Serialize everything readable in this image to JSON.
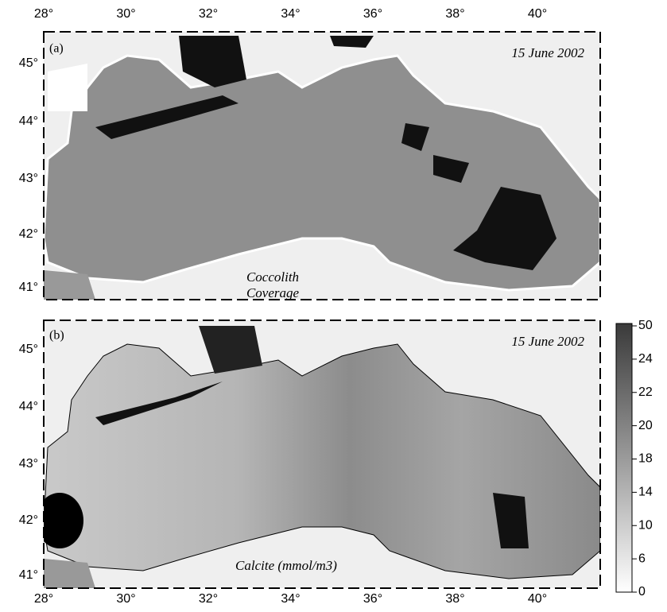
{
  "panels": [
    {
      "label": "(a)",
      "date": "15 June 2002",
      "annotation": [
        "Coccolith",
        "Coverage"
      ]
    },
    {
      "label": "(b)",
      "date": "15 June 2002",
      "annotation": [
        "Calcite (mmol/m3)"
      ]
    }
  ],
  "longitude_labels": [
    "28°",
    "30°",
    "32°",
    "34°",
    "36°",
    "38°",
    "40°"
  ],
  "latitude_labels": [
    "45°",
    "44°",
    "43°",
    "42°",
    "41°"
  ],
  "colorbar": {
    "ticks": [
      50,
      24,
      22,
      20,
      18,
      14,
      10,
      6,
      0
    ]
  }
}
